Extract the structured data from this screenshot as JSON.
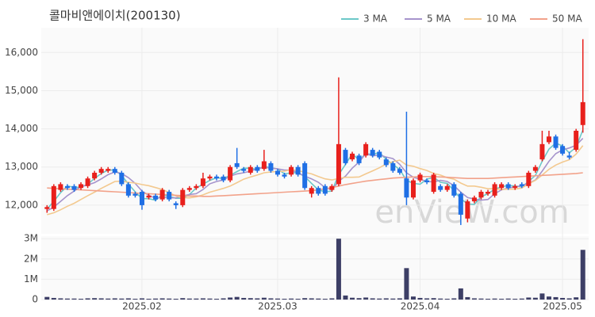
{
  "chart_data": {
    "type": "candlestick",
    "title": "콜마비앤에이치(200130)",
    "watermark": "enVieW.com",
    "up_color": "#e8201c",
    "down_color": "#1f6fe5",
    "grid": true,
    "legend": "top-right",
    "categories": [
      null,
      null,
      null,
      null,
      null,
      null,
      null,
      null,
      null,
      null,
      null,
      null,
      null,
      null,
      "2025.02",
      null,
      null,
      null,
      null,
      null,
      null,
      null,
      null,
      null,
      null,
      null,
      null,
      null,
      null,
      null,
      null,
      null,
      null,
      null,
      "2025.03",
      null,
      null,
      null,
      null,
      null,
      null,
      null,
      null,
      null,
      null,
      null,
      null,
      null,
      null,
      null,
      null,
      null,
      null,
      null,
      null,
      "2025.04",
      null,
      null,
      null,
      null,
      null,
      null,
      null,
      null,
      null,
      null,
      null,
      null,
      null,
      null,
      null,
      null,
      null,
      null,
      null,
      null,
      "2025.05",
      null,
      null,
      null
    ],
    "open": [
      11900,
      11900,
      12400,
      12500,
      12500,
      12450,
      12500,
      12700,
      12850,
      12900,
      12950,
      12850,
      12550,
      12300,
      12350,
      12200,
      12250,
      12150,
      12350,
      12050,
      12000,
      12400,
      12450,
      12500,
      12700,
      12750,
      12750,
      12650,
      13100,
      12950,
      12850,
      13000,
      12950,
      13100,
      12900,
      12800,
      12800,
      13000,
      13100,
      12300,
      12450,
      12500,
      12400,
      12550,
      13450,
      13200,
      13300,
      13300,
      13450,
      13400,
      13200,
      13100,
      12950,
      12700,
      12200,
      12650,
      12650,
      12350,
      12500,
      12400,
      12550,
      12300,
      11650,
      12100,
      12200,
      12300,
      12250,
      12450,
      12550,
      12450,
      12550,
      12500,
      12900,
      13200,
      13650,
      13800,
      13550,
      13300,
      13450,
      14100
    ],
    "high": [
      12000,
      12550,
      12600,
      12550,
      12550,
      12600,
      12750,
      12900,
      13000,
      13000,
      13000,
      12900,
      12600,
      12350,
      12400,
      12300,
      12300,
      12450,
      12400,
      12100,
      12450,
      12500,
      12550,
      12850,
      12800,
      12800,
      12800,
      13050,
      13500,
      13000,
      13050,
      13050,
      13450,
      13150,
      12950,
      12850,
      13050,
      13050,
      13150,
      12500,
      12500,
      12550,
      12550,
      15350,
      13500,
      13400,
      13350,
      13650,
      13500,
      13450,
      13250,
      13150,
      13000,
      14450,
      12700,
      12850,
      12700,
      12850,
      12550,
      12550,
      12600,
      12350,
      12150,
      12250,
      12400,
      12400,
      12600,
      12600,
      12600,
      12550,
      12600,
      12900,
      13050,
      13950,
      13950,
      13850,
      13600,
      13400,
      14000,
      16350
    ],
    "low": [
      11800,
      11850,
      12350,
      12400,
      12350,
      12400,
      12450,
      12650,
      12800,
      12850,
      12800,
      12500,
      12200,
      12200,
      11880,
      12150,
      12100,
      12100,
      12100,
      11900,
      11950,
      12350,
      12400,
      12450,
      12650,
      12650,
      12600,
      12600,
      12950,
      12850,
      12800,
      12850,
      12900,
      12850,
      12750,
      12700,
      12750,
      12750,
      12400,
      12200,
      12250,
      12250,
      12350,
      12500,
      13050,
      13150,
      13050,
      13250,
      13250,
      13200,
      13000,
      12850,
      12800,
      12000,
      12150,
      12600,
      12550,
      12300,
      12350,
      12350,
      12200,
      11480,
      11550,
      12050,
      12150,
      12250,
      12200,
      12400,
      12400,
      12400,
      12450,
      12450,
      12850,
      13150,
      13600,
      13450,
      13300,
      13200,
      13400,
      13900
    ],
    "close": [
      11950,
      12500,
      12550,
      12450,
      12400,
      12550,
      12700,
      12850,
      12950,
      12950,
      12850,
      12550,
      12250,
      12250,
      12000,
      12250,
      12150,
      12400,
      12150,
      12000,
      12400,
      12450,
      12500,
      12700,
      12750,
      12700,
      12650,
      13000,
      13000,
      12900,
      13000,
      12900,
      13150,
      12900,
      12800,
      12750,
      13000,
      12800,
      12450,
      12450,
      12300,
      12300,
      12500,
      13600,
      13100,
      13350,
      13100,
      13600,
      13300,
      13250,
      13050,
      12900,
      12850,
      12200,
      12650,
      12800,
      12600,
      12800,
      12400,
      12500,
      12250,
      11750,
      12100,
      12200,
      12350,
      12350,
      12550,
      12550,
      12450,
      12500,
      12500,
      12850,
      13000,
      13600,
      13800,
      13500,
      13350,
      13250,
      13950,
      14700
    ],
    "ylim": [
      11250,
      16650
    ],
    "yticks": [
      {
        "value": 12000,
        "label": "12,000"
      },
      {
        "value": 13000,
        "label": "13,000"
      },
      {
        "value": 14000,
        "label": "14,000"
      },
      {
        "value": 15000,
        "label": "15,000"
      },
      {
        "value": 16000,
        "label": "16,000"
      }
    ],
    "series": [
      {
        "name": "3 MA",
        "color": "#6cc8c8",
        "values": [
          11900,
          12100,
          12330,
          12500,
          12470,
          12470,
          12550,
          12700,
          12830,
          12920,
          12920,
          12780,
          12550,
          12350,
          12170,
          12170,
          12130,
          12270,
          12230,
          12180,
          12180,
          12280,
          12450,
          12550,
          12650,
          12720,
          12700,
          12780,
          12880,
          12970,
          12970,
          12930,
          13020,
          12980,
          12950,
          12820,
          12850,
          12850,
          12750,
          12570,
          12400,
          12350,
          12370,
          12800,
          13070,
          13350,
          13180,
          13350,
          13330,
          13380,
          13200,
          13070,
          12930,
          12650,
          12570,
          12550,
          12680,
          12730,
          12600,
          12570,
          12380,
          12170,
          12030,
          12020,
          12220,
          12300,
          12420,
          12480,
          12520,
          12500,
          12480,
          12620,
          12780,
          13150,
          13470,
          13630,
          13550,
          13370,
          13520,
          13970
        ]
      },
      {
        "name": "5 MA",
        "color": "#a694cc",
        "values": [
          11850,
          11950,
          12100,
          12250,
          12370,
          12490,
          12530,
          12590,
          12690,
          12800,
          12870,
          12830,
          12720,
          12570,
          12370,
          12260,
          12180,
          12210,
          12190,
          12190,
          12240,
          12280,
          12300,
          12410,
          12560,
          12620,
          12660,
          12760,
          12820,
          12850,
          12890,
          12960,
          12990,
          12970,
          12950,
          12920,
          12920,
          12850,
          12760,
          12690,
          12600,
          12460,
          12400,
          12630,
          12760,
          12970,
          13130,
          13350,
          13290,
          13320,
          13260,
          13220,
          13070,
          12850,
          12730,
          12680,
          12620,
          12610,
          12650,
          12620,
          12510,
          12340,
          12200,
          12160,
          12130,
          12150,
          12300,
          12400,
          12450,
          12480,
          12510,
          12570,
          12660,
          12890,
          13150,
          13350,
          13450,
          13500,
          13570,
          13750
        ]
      },
      {
        "name": "10 MA",
        "color": "#f3c98f",
        "values": [
          11750,
          11800,
          11880,
          11970,
          12050,
          12150,
          12250,
          12340,
          12440,
          12530,
          12620,
          12630,
          12600,
          12580,
          12540,
          12510,
          12460,
          12410,
          12330,
          12240,
          12200,
          12190,
          12220,
          12270,
          12340,
          12390,
          12440,
          12500,
          12590,
          12680,
          12740,
          12790,
          12850,
          12870,
          12880,
          12890,
          12930,
          12910,
          12860,
          12820,
          12750,
          12690,
          12660,
          12700,
          12730,
          12730,
          12740,
          12820,
          12900,
          12980,
          13080,
          13140,
          13180,
          13050,
          13020,
          12960,
          12910,
          12830,
          12790,
          12720,
          12680,
          12580,
          12500,
          12500,
          12470,
          12430,
          12430,
          12410,
          12420,
          12420,
          12450,
          12560,
          12650,
          12790,
          12940,
          13050,
          13130,
          13190,
          13340,
          13560
        ]
      },
      {
        "name": "50 MA",
        "color": "#f2a28a",
        "values": [
          12450,
          12440,
          12430,
          12420,
          12410,
          12400,
          12390,
          12380,
          12370,
          12360,
          12350,
          12340,
          12330,
          12320,
          12310,
          12300,
          12290,
          12280,
          12270,
          12260,
          12250,
          12240,
          12240,
          12230,
          12230,
          12240,
          12250,
          12260,
          12270,
          12280,
          12290,
          12300,
          12310,
          12320,
          12330,
          12340,
          12350,
          12360,
          12370,
          12380,
          12400,
          12430,
          12460,
          12500,
          12540,
          12570,
          12600,
          12630,
          12650,
          12670,
          12690,
          12710,
          12720,
          12730,
          12740,
          12750,
          12750,
          12750,
          12740,
          12730,
          12720,
          12710,
          12700,
          12700,
          12700,
          12700,
          12710,
          12720,
          12730,
          12740,
          12750,
          12760,
          12770,
          12780,
          12790,
          12800,
          12810,
          12820,
          12830,
          12850
        ]
      }
    ],
    "volume": {
      "color": "#3d3f66",
      "values": [
        130000,
        80000,
        60000,
        50000,
        50000,
        40000,
        60000,
        70000,
        60000,
        50000,
        60000,
        50000,
        60000,
        40000,
        60000,
        40000,
        50000,
        60000,
        50000,
        40000,
        70000,
        50000,
        50000,
        60000,
        50000,
        40000,
        60000,
        100000,
        130000,
        80000,
        70000,
        60000,
        90000,
        60000,
        50000,
        40000,
        50000,
        40000,
        70000,
        60000,
        50000,
        40000,
        60000,
        3000000,
        200000,
        90000,
        70000,
        100000,
        60000,
        50000,
        60000,
        50000,
        60000,
        1550000,
        150000,
        80000,
        60000,
        70000,
        50000,
        40000,
        60000,
        550000,
        120000,
        60000,
        50000,
        40000,
        50000,
        40000,
        50000,
        40000,
        50000,
        100000,
        90000,
        300000,
        150000,
        120000,
        80000,
        60000,
        110000,
        2450000
      ],
      "ylim": [
        0,
        3125000
      ],
      "yticks": [
        0,
        {
          "value": 1000000,
          "label": "1M"
        },
        {
          "value": 2000000,
          "label": "2M"
        },
        {
          "value": 3000000,
          "label": "3M"
        }
      ]
    }
  }
}
